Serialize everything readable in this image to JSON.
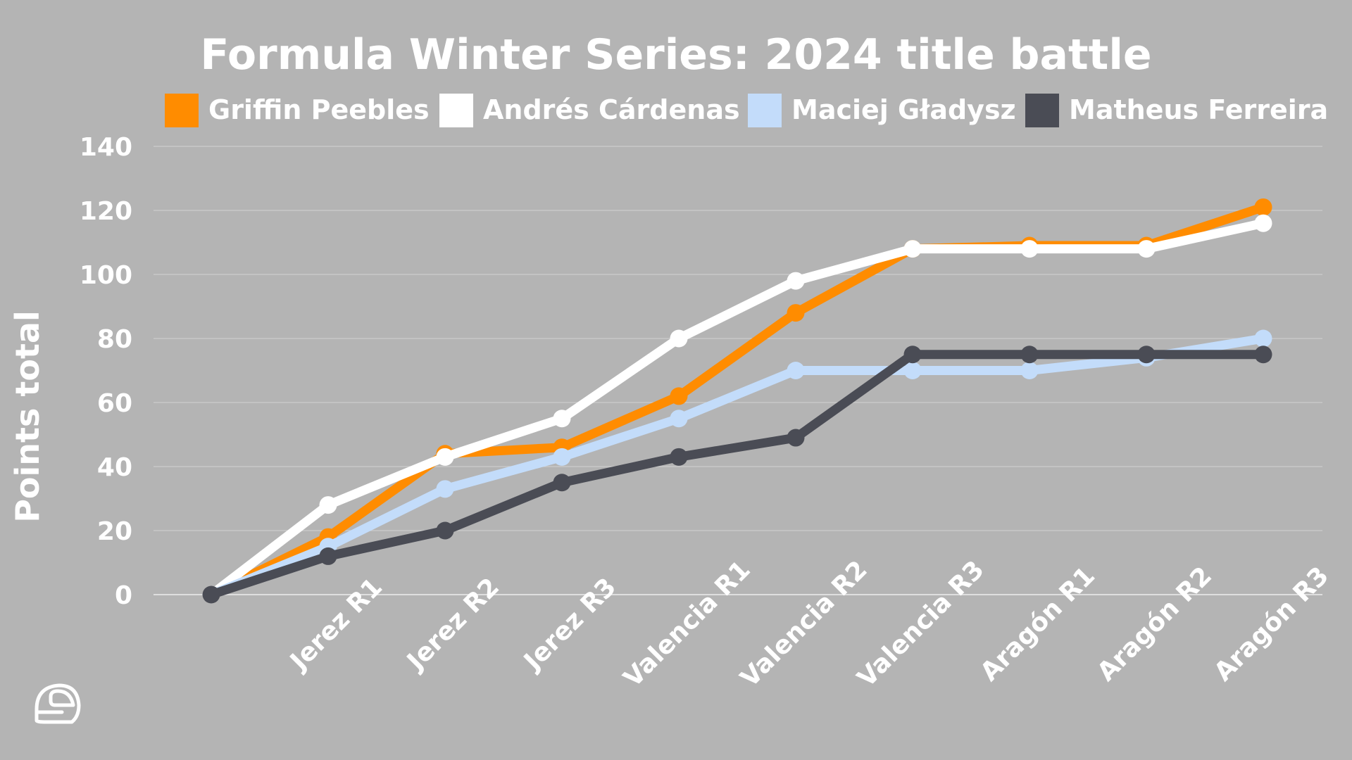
{
  "chart_data": {
    "type": "line",
    "title": "Formula Winter Series: 2024 title battle",
    "xlabel": "",
    "ylabel": "Points total",
    "ylim": [
      0,
      140
    ],
    "yticks": [
      0,
      20,
      40,
      60,
      80,
      100,
      120,
      140
    ],
    "grid": true,
    "legend": "top",
    "categories": [
      "",
      "Jerez R1",
      "Jerez R2",
      "Jerez R3",
      "Valencia R1",
      "Valencia R2",
      "Valencia R3",
      "Aragón R1",
      "Aragón R2",
      "Aragón R3"
    ],
    "series": [
      {
        "name": "Griffin Peebles",
        "color": "#ff8c00",
        "values": [
          0,
          18,
          44,
          46,
          62,
          88,
          108,
          109,
          109,
          121
        ]
      },
      {
        "name": "Andrés Cárdenas",
        "color": "#ffffff",
        "values": [
          0,
          28,
          43,
          55,
          80,
          98,
          108,
          108,
          108,
          116
        ]
      },
      {
        "name": "Maciej Gładysz",
        "color": "#c3dcfa",
        "values": [
          0,
          15,
          33,
          43,
          55,
          70,
          70,
          70,
          74,
          80
        ]
      },
      {
        "name": "Matheus Ferreira",
        "color": "#4a4c55",
        "values": [
          0,
          12,
          20,
          35,
          43,
          49,
          75,
          75,
          75,
          75
        ]
      }
    ]
  },
  "icons": {
    "corner": "helmet-icon"
  },
  "colors": {
    "background": "#b4b4b4",
    "grid": "#cccccc",
    "text": "#ffffff"
  }
}
